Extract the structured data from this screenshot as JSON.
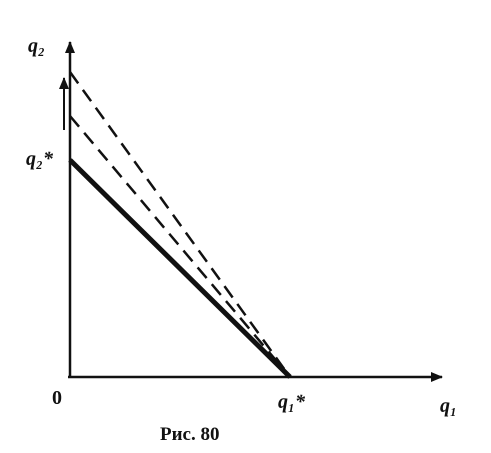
{
  "axes": {
    "y_label": "q₂",
    "x_label": "q₁",
    "origin": "0"
  },
  "points": {
    "y_intercept": "q₂*",
    "x_intercept": "q₁*"
  },
  "caption": "Рис. 80"
}
